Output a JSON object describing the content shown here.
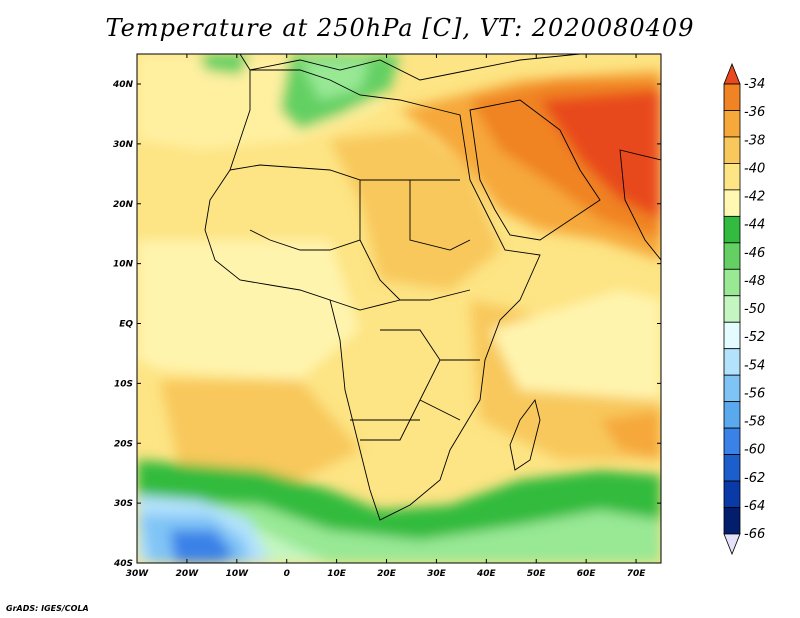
{
  "title": "Temperature at 250hPa [C], VT: 2020080409",
  "credit": "GrADS: IGES/COLA",
  "map": {
    "lon_labels": [
      "30W",
      "20W",
      "10W",
      "0",
      "10E",
      "20E",
      "30E",
      "40E",
      "50E",
      "60E",
      "70E"
    ],
    "lat_labels": [
      "40N",
      "30N",
      "20N",
      "10N",
      "EQ",
      "10S",
      "20S",
      "30S",
      "40S"
    ],
    "variable": "Temperature at 250hPa",
    "units": "C"
  },
  "colorbar": {
    "labels": [
      "-34",
      "-36",
      "-38",
      "-40",
      "-42",
      "-44",
      "-46",
      "-48",
      "-50",
      "-52",
      "-54",
      "-56",
      "-58",
      "-60",
      "-62",
      "-64",
      "-66"
    ],
    "colors": [
      "#e8491e",
      "#f08323",
      "#f6a83a",
      "#f8c85c",
      "#fde484",
      "#fff7b2",
      "#32bb3e",
      "#64d064",
      "#98e894",
      "#c4f6c2",
      "#e4fcff",
      "#b2e2fc",
      "#80c4f6",
      "#5aa8ee",
      "#3b82e8",
      "#1c5ecc",
      "#0a3aa8",
      "#041e6e",
      "#e6e2fa"
    ]
  }
}
